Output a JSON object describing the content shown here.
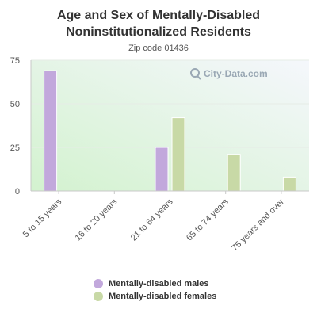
{
  "chart_data": {
    "type": "bar",
    "title": "Age and Sex of Mentally-Disabled\nNoninstitutionalized Residents",
    "subtitle": "Zip code 01436",
    "categories": [
      "5 to 15 years",
      "16 to 20 years",
      "21 to 64 years",
      "65 to 74 years",
      "75 years and over"
    ],
    "series": [
      {
        "name": "Mentally-disabled males",
        "color": "#c2a8dc",
        "values": [
          69,
          0,
          25,
          0,
          0
        ]
      },
      {
        "name": "Mentally-disabled females",
        "color": "#c8d9a6",
        "values": [
          0,
          0,
          42,
          21,
          8
        ]
      }
    ],
    "yticks": [
      0,
      25,
      50,
      75
    ],
    "ylim": [
      0,
      75
    ],
    "grid": true,
    "legend_position": "bottom"
  },
  "watermark": {
    "text": "City-Data.com",
    "icon": "magnifier-icon"
  }
}
